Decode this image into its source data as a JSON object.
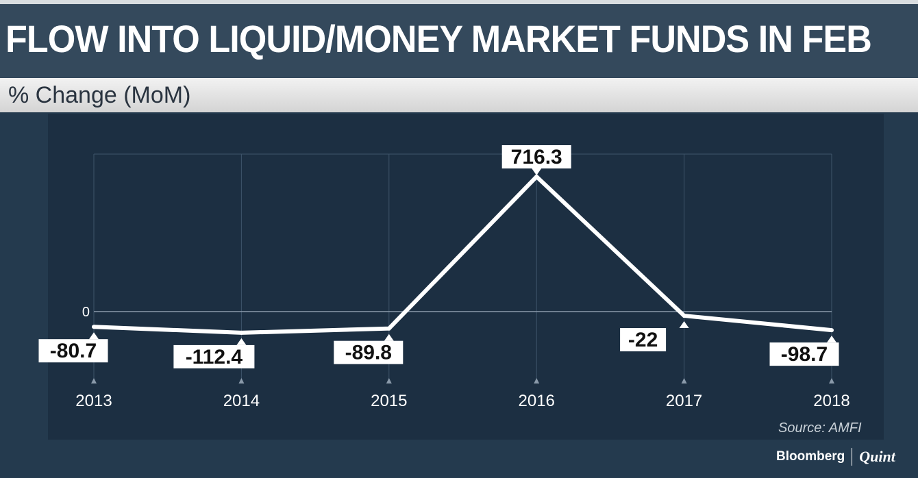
{
  "header": {
    "title": "FLOW INTO LIQUID/MONEY MARKET FUNDS IN FEB",
    "subtitle": "% Change (MoM)"
  },
  "footer": {
    "source": "Source: AMFI",
    "brand_primary": "Bloomberg",
    "brand_secondary": "Quint"
  },
  "colors": {
    "background": "#243a4e",
    "panel": "#1c2f42",
    "line": "#ffffff",
    "grid": "#3e546a"
  },
  "chart_data": {
    "type": "line",
    "title": "FLOW INTO LIQUID/MONEY MARKET FUNDS IN FEB",
    "subtitle": "% Change (MoM)",
    "categories": [
      "2013",
      "2014",
      "2015",
      "2016",
      "2017",
      "2018"
    ],
    "values": [
      -80.7,
      -112.4,
      -89.8,
      716.3,
      -22,
      -98.7
    ],
    "data_labels": [
      "-80.7",
      "-112.4",
      "-89.8",
      "716.3",
      "-22",
      "-98.7"
    ],
    "y_tick_labels": [
      "0"
    ],
    "xlabel": "",
    "ylabel": "",
    "ylim": [
      -300,
      900
    ],
    "grid": true,
    "legend": "none"
  }
}
